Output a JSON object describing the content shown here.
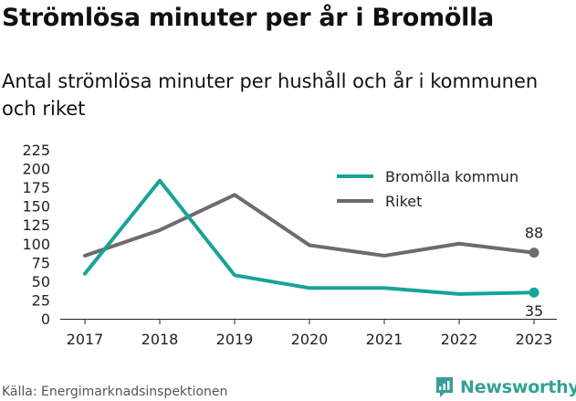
{
  "title": "Strömlösa minuter per år i Bromölla",
  "subtitle": "Antal strömlösa minuter per hushåll och år i kommunen och riket",
  "source": "Källa: Energimarknadsinspektionen",
  "brand": {
    "name": "Newsworthy",
    "icon": "newsworthy-logo-icon",
    "color": "#36a095"
  },
  "chart_data": {
    "type": "line",
    "x": [
      "2017",
      "2018",
      "2019",
      "2020",
      "2021",
      "2022",
      "2023"
    ],
    "ylim": [
      0,
      225
    ],
    "yticks": [
      0,
      25,
      50,
      75,
      100,
      125,
      150,
      175,
      200,
      225
    ],
    "grid": false,
    "legend_position": "top-right",
    "series": [
      {
        "name": "Bromölla kommun",
        "color": "#17a398",
        "values": [
          60,
          184,
          58,
          41,
          41,
          33,
          35
        ],
        "end_label": "35"
      },
      {
        "name": "Riket",
        "color": "#6b6b70",
        "values": [
          84,
          118,
          165,
          98,
          84,
          100,
          88
        ],
        "end_label": "88"
      }
    ]
  }
}
